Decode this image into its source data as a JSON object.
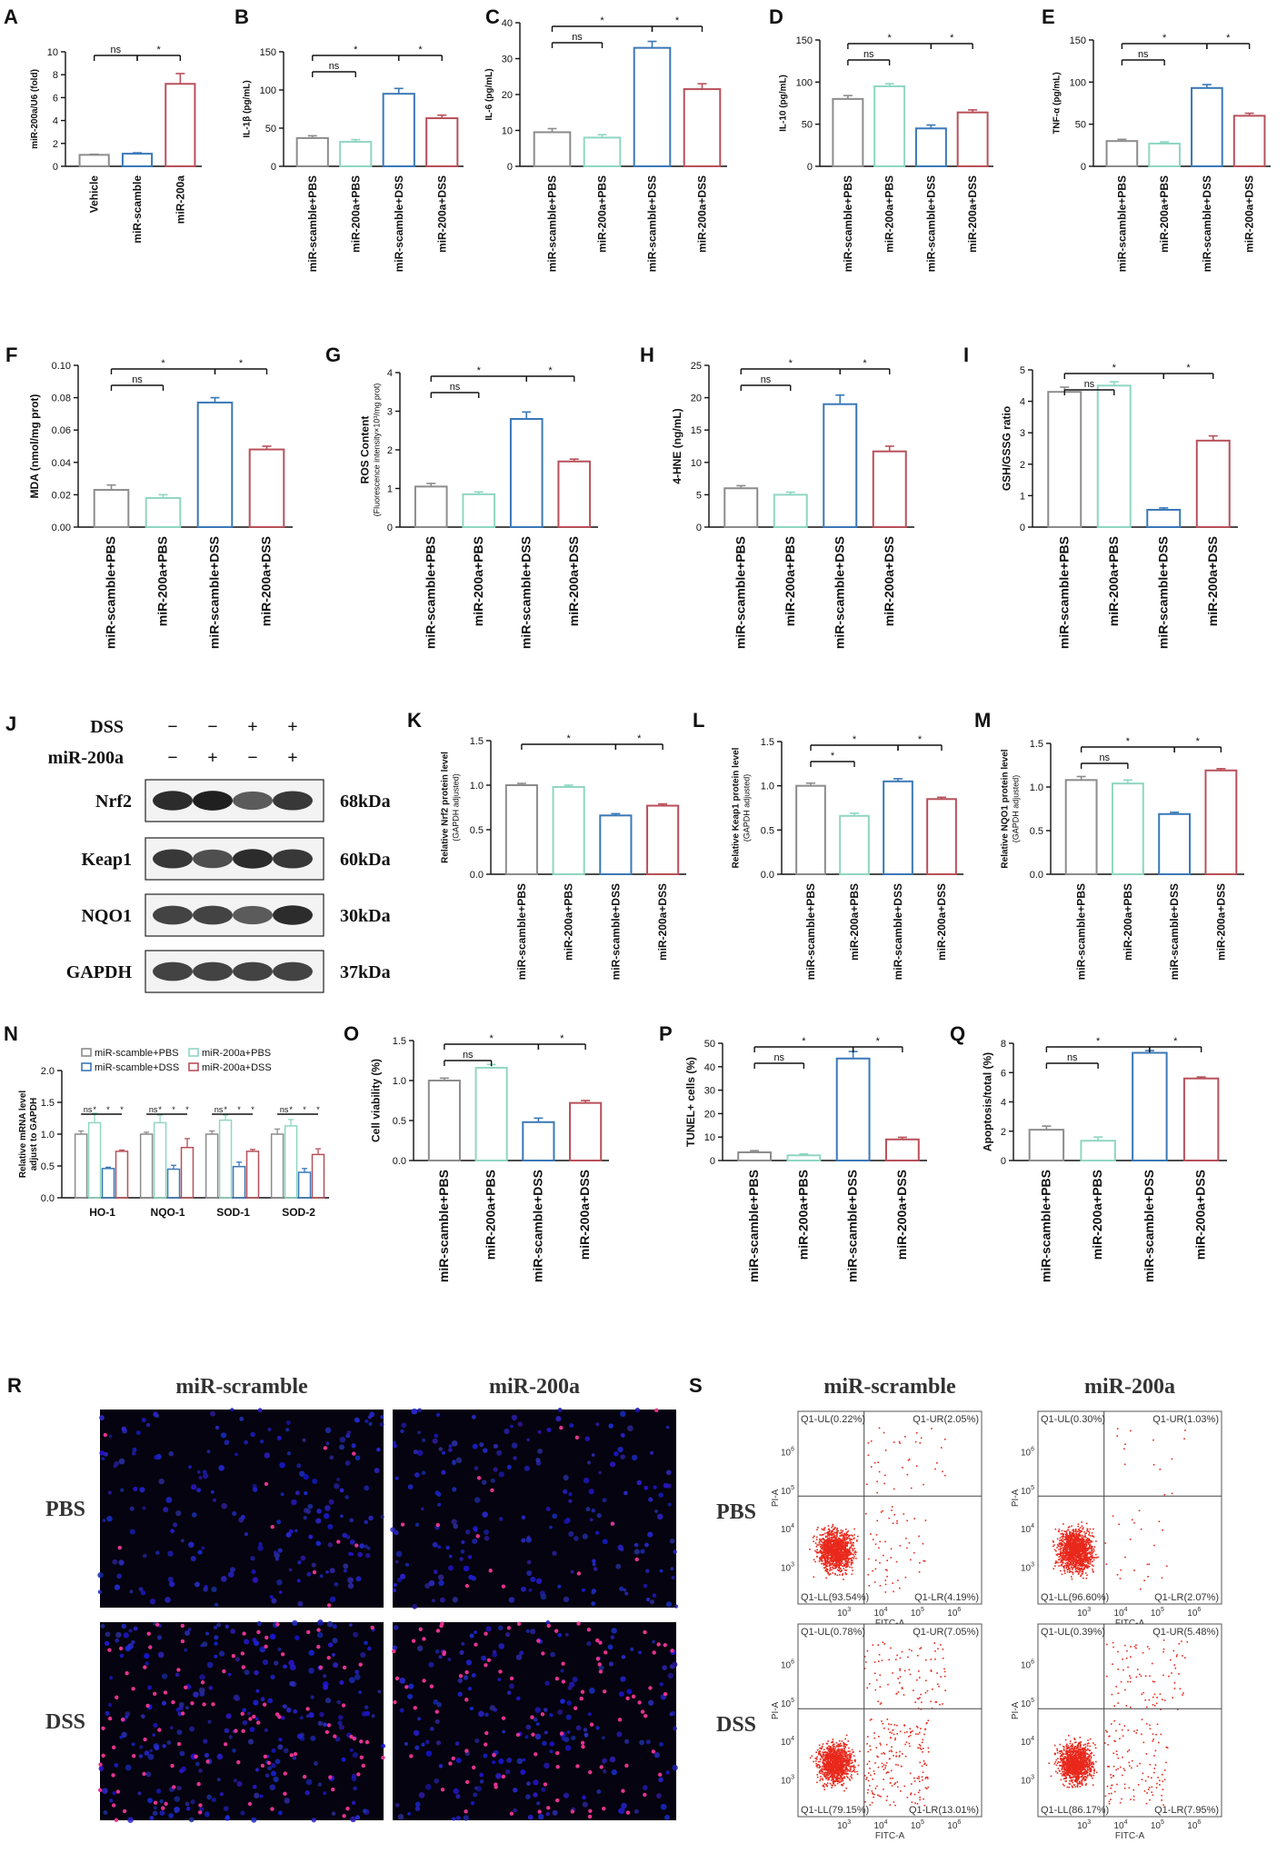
{
  "colors": {
    "gray": "#8c8c8c",
    "green": "#8fd6c2",
    "blue": "#3a78b8",
    "red": "#b8505a"
  },
  "chart_data": [
    {
      "id": "A",
      "letter": "A",
      "type": "bar",
      "ylabel": "miR-200a/U6 (fold)",
      "ylim": [
        0,
        10
      ],
      "yticks": [
        0,
        2,
        4,
        6,
        8,
        10
      ],
      "categories": [
        "Vehicle",
        "miR-scamble",
        "miR-200a"
      ],
      "values": [
        1.0,
        1.1,
        7.2
      ],
      "errors": [
        0.05,
        0.08,
        0.9
      ],
      "bar_colors": [
        "gray",
        "blue",
        "red"
      ],
      "sig": [
        {
          "a": 0,
          "b": 1,
          "text": "ns"
        },
        {
          "a": 1,
          "b": 2,
          "text": "*"
        }
      ]
    },
    {
      "id": "B",
      "letter": "B",
      "type": "bar",
      "ylabel": "IL-1β (pg/mL)",
      "ylim": [
        0,
        150
      ],
      "yticks": [
        0,
        50,
        100,
        150
      ],
      "categories": [
        "miR-scamble+PBS",
        "miR-200a+PBS",
        "miR-scamble+DSS",
        "miR-200a+DSS"
      ],
      "values": [
        37,
        32,
        95,
        63
      ],
      "errors": [
        3,
        3,
        7,
        4
      ],
      "sig": [
        {
          "a": 0,
          "b": 1,
          "text": "ns",
          "row": 1
        },
        {
          "a": 0,
          "b": 2,
          "text": "*",
          "row": 0
        },
        {
          "a": 2,
          "b": 3,
          "text": "*",
          "row": 0
        }
      ]
    },
    {
      "id": "C",
      "letter": "C",
      "type": "bar",
      "ylabel": "IL-6 (pg/mL)",
      "ylim": [
        0,
        40
      ],
      "yticks": [
        0,
        10,
        20,
        30,
        40
      ],
      "categories": [
        "miR-scamble+PBS",
        "miR-200a+PBS",
        "miR-scamble+DSS",
        "miR-200a+DSS"
      ],
      "values": [
        9.5,
        8,
        33,
        21.5
      ],
      "errors": [
        1,
        0.8,
        1.8,
        1.5
      ],
      "sig": [
        {
          "a": 0,
          "b": 1,
          "text": "ns",
          "row": 1
        },
        {
          "a": 0,
          "b": 2,
          "text": "*",
          "row": 0
        },
        {
          "a": 2,
          "b": 3,
          "text": "*",
          "row": 0
        }
      ]
    },
    {
      "id": "D",
      "letter": "D",
      "type": "bar",
      "ylabel": "IL-10 (pg/mL)",
      "ylim": [
        0,
        150
      ],
      "yticks": [
        0,
        50,
        100,
        150
      ],
      "categories": [
        "miR-scamble+PBS",
        "miR-200a+PBS",
        "miR-scamble+DSS",
        "miR-200a+DSS"
      ],
      "values": [
        80,
        95,
        45,
        64
      ],
      "errors": [
        4,
        3,
        4,
        3
      ],
      "sig": [
        {
          "a": 0,
          "b": 1,
          "text": "ns",
          "row": 1
        },
        {
          "a": 0,
          "b": 2,
          "text": "*",
          "row": 0
        },
        {
          "a": 2,
          "b": 3,
          "text": "*",
          "row": 0
        }
      ]
    },
    {
      "id": "E",
      "letter": "E",
      "type": "bar",
      "ylabel": "TNF-α (pg/mL)",
      "ylim": [
        0,
        150
      ],
      "yticks": [
        0,
        50,
        100,
        150
      ],
      "categories": [
        "miR-scamble+PBS",
        "miR-200a+PBS",
        "miR-scamble+DSS",
        "miR-200a+DSS"
      ],
      "values": [
        30,
        27,
        93,
        60
      ],
      "errors": [
        2,
        2,
        4,
        3
      ],
      "sig": [
        {
          "a": 0,
          "b": 1,
          "text": "ns",
          "row": 1
        },
        {
          "a": 0,
          "b": 2,
          "text": "*",
          "row": 0
        },
        {
          "a": 2,
          "b": 3,
          "text": "*",
          "row": 0
        }
      ]
    },
    {
      "id": "F",
      "letter": "F",
      "type": "bar",
      "ylabel": "MDA (nmol/mg prot)",
      "ylim": [
        0,
        0.1
      ],
      "yticks": [
        0.0,
        0.02,
        0.04,
        0.06,
        0.08,
        0.1
      ],
      "tick_fmt": "0.00",
      "categories": [
        "miR-scamble+PBS",
        "miR-200a+PBS",
        "miR-scamble+DSS",
        "miR-200a+DSS"
      ],
      "values": [
        0.023,
        0.018,
        0.077,
        0.048
      ],
      "errors": [
        0.003,
        0.002,
        0.003,
        0.002
      ],
      "sig": [
        {
          "a": 0,
          "b": 1,
          "text": "ns",
          "row": 1
        },
        {
          "a": 0,
          "b": 2,
          "text": "*",
          "row": 0
        },
        {
          "a": 2,
          "b": 3,
          "text": "*",
          "row": 0
        }
      ]
    },
    {
      "id": "G",
      "letter": "G",
      "type": "bar",
      "ylabel": "ROS Content",
      "ylabel2": "(Fluorescence intensity×10³/mg prot)",
      "ylim": [
        0,
        4
      ],
      "yticks": [
        0,
        1,
        2,
        3,
        4
      ],
      "categories": [
        "miR-scamble+PBS",
        "miR-200a+PBS",
        "miR-scamble+DSS",
        "miR-200a+DSS"
      ],
      "values": [
        1.05,
        0.85,
        2.8,
        1.7
      ],
      "errors": [
        0.08,
        0.06,
        0.18,
        0.06
      ],
      "sig": [
        {
          "a": 0,
          "b": 1,
          "text": "ns",
          "row": 1
        },
        {
          "a": 0,
          "b": 2,
          "text": "*",
          "row": 0
        },
        {
          "a": 2,
          "b": 3,
          "text": "*",
          "row": 0
        }
      ]
    },
    {
      "id": "H",
      "letter": "H",
      "type": "bar",
      "ylabel": "4-HNE (ng/mL)",
      "ylim": [
        0,
        25
      ],
      "yticks": [
        0,
        5,
        10,
        15,
        20,
        25
      ],
      "categories": [
        "miR-scamble+PBS",
        "miR-200a+PBS",
        "miR-scamble+DSS",
        "miR-200a+DSS"
      ],
      "values": [
        6,
        5,
        19,
        11.7
      ],
      "errors": [
        0.4,
        0.4,
        1.4,
        0.8
      ],
      "sig": [
        {
          "a": 0,
          "b": 1,
          "text": "ns",
          "row": 1
        },
        {
          "a": 0,
          "b": 2,
          "text": "*",
          "row": 0
        },
        {
          "a": 2,
          "b": 3,
          "text": "*",
          "row": 0
        }
      ]
    },
    {
      "id": "I",
      "letter": "I",
      "type": "bar",
      "ylabel": "GSH/GSSG ratio",
      "ylim": [
        0,
        5
      ],
      "yticks": [
        0,
        1,
        2,
        3,
        4,
        5
      ],
      "categories": [
        "miR-scamble+PBS",
        "miR-200a+PBS",
        "miR-scamble+DSS",
        "miR-200a+DSS"
      ],
      "values": [
        4.3,
        4.5,
        0.55,
        2.75
      ],
      "errors": [
        0.15,
        0.12,
        0.06,
        0.15
      ],
      "sig": [
        {
          "a": 0,
          "b": 1,
          "text": "ns",
          "row": 1
        },
        {
          "a": 0,
          "b": 2,
          "text": "*",
          "row": 0
        },
        {
          "a": 2,
          "b": 3,
          "text": "*",
          "row": 0
        }
      ]
    },
    {
      "id": "K",
      "letter": "K",
      "type": "bar",
      "ylabel": "Relative Nrf2 protein level",
      "ylabel2": "(GAPDH adjusted)",
      "ylim": [
        0,
        1.5
      ],
      "yticks": [
        0.0,
        0.5,
        1.0,
        1.5
      ],
      "tick_fmt": "0.0",
      "categories": [
        "miR-scamble+PBS",
        "miR-200a+PBS",
        "miR-scamble+DSS",
        "miR-200a+DSS"
      ],
      "values": [
        1.0,
        0.98,
        0.66,
        0.77
      ],
      "errors": [
        0.02,
        0.02,
        0.02,
        0.02
      ],
      "sig": [
        {
          "a": 0,
          "b": 2,
          "text": "*",
          "row": 0
        },
        {
          "a": 2,
          "b": 3,
          "text": "*",
          "row": 0
        }
      ]
    },
    {
      "id": "L",
      "letter": "L",
      "type": "bar",
      "ylabel": "Relative Keap1 protein level",
      "ylabel2": "(GAPDH adjusted)",
      "ylim": [
        0,
        1.5
      ],
      "yticks": [
        0.0,
        0.5,
        1.0,
        1.5
      ],
      "tick_fmt": "0.0",
      "categories": [
        "miR-scamble+PBS",
        "miR-200a+PBS",
        "miR-scamble+DSS",
        "miR-200a+DSS"
      ],
      "values": [
        1.0,
        0.66,
        1.05,
        0.85
      ],
      "errors": [
        0.03,
        0.03,
        0.03,
        0.02
      ],
      "sig": [
        {
          "a": 0,
          "b": 1,
          "text": "*",
          "row": 1
        },
        {
          "a": 0,
          "b": 2,
          "text": "*",
          "row": 0
        },
        {
          "a": 2,
          "b": 3,
          "text": "*",
          "row": 0
        }
      ]
    },
    {
      "id": "M",
      "letter": "M",
      "type": "bar",
      "ylabel": "Relative NQO1 protein level",
      "ylabel2": "(GAPDH adjusted)",
      "ylim": [
        0,
        1.5
      ],
      "yticks": [
        0.0,
        0.5,
        1.0,
        1.5
      ],
      "tick_fmt": "0.0",
      "categories": [
        "miR-scamble+PBS",
        "miR-200a+PBS",
        "miR-scamble+DSS",
        "miR-200a+DSS"
      ],
      "values": [
        1.08,
        1.04,
        0.69,
        1.19
      ],
      "errors": [
        0.04,
        0.04,
        0.02,
        0.02
      ],
      "sig": [
        {
          "a": 0,
          "b": 1,
          "text": "ns",
          "row": 1
        },
        {
          "a": 0,
          "b": 2,
          "text": "*",
          "row": 0
        },
        {
          "a": 2,
          "b": 3,
          "text": "*",
          "row": 0
        }
      ]
    },
    {
      "id": "O",
      "letter": "O",
      "type": "bar",
      "ylabel": "Cell viability (%)",
      "ylim": [
        0,
        1.5
      ],
      "yticks": [
        0.0,
        0.5,
        1.0,
        1.5
      ],
      "tick_fmt": "0.0",
      "categories": [
        "miR-scamble+PBS",
        "miR-200a+PBS",
        "miR-scamble+DSS",
        "miR-200a+DSS"
      ],
      "values": [
        1.0,
        1.16,
        0.48,
        0.72
      ],
      "errors": [
        0.03,
        0.04,
        0.05,
        0.03
      ],
      "sig": [
        {
          "a": 0,
          "b": 1,
          "text": "ns",
          "row": 1
        },
        {
          "a": 0,
          "b": 2,
          "text": "*",
          "row": 0
        },
        {
          "a": 2,
          "b": 3,
          "text": "*",
          "row": 0
        }
      ]
    },
    {
      "id": "P",
      "letter": "P",
      "type": "bar",
      "ylabel": "TUNEL+ cells (%)",
      "ylim": [
        0,
        50
      ],
      "yticks": [
        0,
        10,
        20,
        30,
        40,
        50
      ],
      "categories": [
        "miR-scamble+PBS",
        "miR-200a+PBS",
        "miR-scamble+DSS",
        "miR-200a+DSS"
      ],
      "values": [
        3.5,
        2.2,
        43.5,
        9
      ],
      "errors": [
        0.7,
        0.6,
        3,
        0.9
      ],
      "sig": [
        {
          "a": 0,
          "b": 1,
          "text": "ns",
          "row": 1
        },
        {
          "a": 0,
          "b": 2,
          "text": "*",
          "row": 0
        },
        {
          "a": 2,
          "b": 3,
          "text": "*",
          "row": 0
        }
      ]
    },
    {
      "id": "Q",
      "letter": "Q",
      "type": "bar",
      "ylabel": "Apoptosis/total (%)",
      "ylim": [
        0,
        8
      ],
      "yticks": [
        0,
        2,
        4,
        6,
        8
      ],
      "categories": [
        "miR-scamble+PBS",
        "miR-200a+PBS",
        "miR-scamble+DSS",
        "miR-200a+DSS"
      ],
      "values": [
        2.1,
        1.35,
        7.35,
        5.6
      ],
      "errors": [
        0.25,
        0.25,
        0.15,
        0.1
      ],
      "sig": [
        {
          "a": 0,
          "b": 1,
          "text": "ns",
          "row": 1
        },
        {
          "a": 0,
          "b": 2,
          "text": "*",
          "row": 0
        },
        {
          "a": 2,
          "b": 3,
          "text": "*",
          "row": 0
        }
      ]
    },
    {
      "id": "N",
      "letter": "N",
      "type": "grouped_bar",
      "ylabel": "Relative  mRNA level",
      "ylabel2": "adjust to GAPDH",
      "ylim": [
        0,
        2.0
      ],
      "yticks": [
        0.0,
        0.5,
        1.0,
        1.5,
        2.0
      ],
      "tick_fmt": "0.0",
      "categories": [
        "HO-1",
        "NQO-1",
        "SOD-1",
        "SOD-2"
      ],
      "series": [
        {
          "name": "miR-scamble+PBS",
          "color": "gray",
          "values": [
            1.0,
            1.0,
            1.0,
            1.0
          ],
          "errors": [
            0.05,
            0.03,
            0.05,
            0.08
          ]
        },
        {
          "name": "miR-200a+PBS",
          "color": "green",
          "values": [
            1.18,
            1.18,
            1.22,
            1.13
          ],
          "errors": [
            0.15,
            0.12,
            0.08,
            0.1
          ]
        },
        {
          "name": "miR-scamble+DSS",
          "color": "blue",
          "values": [
            0.46,
            0.45,
            0.49,
            0.4
          ],
          "errors": [
            0.02,
            0.06,
            0.07,
            0.06
          ]
        },
        {
          "name": "miR-200a+DSS",
          "color": "red",
          "values": [
            0.73,
            0.79,
            0.73,
            0.68
          ],
          "errors": [
            0.02,
            0.14,
            0.03,
            0.09
          ]
        }
      ],
      "sig_labels": [
        "ns",
        "*",
        "*",
        "*"
      ]
    }
  ],
  "western": {
    "letter": "J",
    "rows": [
      {
        "label": "DSS",
        "signs": [
          "−",
          "−",
          "+",
          "+"
        ]
      },
      {
        "label": "miR-200a",
        "signs": [
          "−",
          "+",
          "−",
          "+"
        ]
      }
    ],
    "bands": [
      {
        "name": "Nrf2",
        "size": "68kDa",
        "intensity": [
          0.9,
          0.95,
          0.7,
          0.85
        ]
      },
      {
        "name": "Keap1",
        "size": "60kDa",
        "intensity": [
          0.85,
          0.75,
          0.9,
          0.85
        ]
      },
      {
        "name": "NQO1",
        "size": "30kDa",
        "intensity": [
          0.8,
          0.8,
          0.7,
          0.9
        ]
      },
      {
        "name": "GAPDH",
        "size": "37kDa",
        "intensity": [
          0.8,
          0.8,
          0.8,
          0.8
        ]
      }
    ]
  },
  "tunel_images": {
    "letter": "R",
    "cols": [
      "miR-scramble",
      "miR-200a"
    ],
    "rows": [
      "PBS",
      "DSS"
    ]
  },
  "flow": {
    "letter": "S",
    "cols": [
      "miR-scramble",
      "miR-200a"
    ],
    "rows": [
      "PBS",
      "DSS"
    ],
    "x_axis_label": "FITC-A",
    "y_axis_label": "PI-A",
    "tick_exps": [
      "2",
      "3",
      "4",
      "5",
      "6"
    ],
    "plots": [
      {
        "ul": "Q1-UL(0.22%)",
        "ur": "Q1-UR(2.05%)",
        "ll": "Q1-LL(93.54%)",
        "lr": "Q1-LR(4.19%)",
        "ur_frac": 0.0205,
        "lr_frac": 0.0419
      },
      {
        "ul": "Q1-UL(0.30%)",
        "ur": "Q1-UR(1.03%)",
        "ll": "Q1-LL(96.60%)",
        "lr": "Q1-LR(2.07%)",
        "ur_frac": 0.0103,
        "lr_frac": 0.0207
      },
      {
        "ul": "Q1-UL(0.78%)",
        "ur": "Q1-UR(7.05%)",
        "ll": "Q1-LL(79.15%)",
        "lr": "Q1-LR(13.01%)",
        "ur_frac": 0.0705,
        "lr_frac": 0.1301
      },
      {
        "ul": "Q1-UL(0.39%)",
        "ur": "Q1-UR(5.48%)",
        "ll": "Q1-LL(86.17%)",
        "lr": "Q1-LR(7.95%)",
        "ur_frac": 0.0548,
        "lr_frac": 0.0795
      }
    ]
  }
}
